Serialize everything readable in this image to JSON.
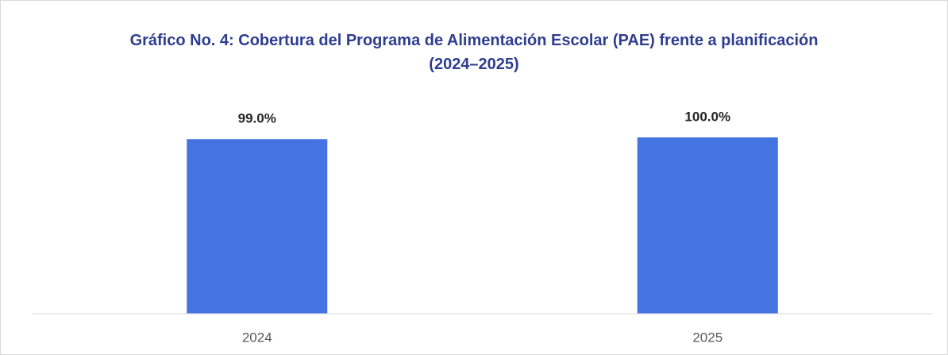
{
  "chart_data": {
    "type": "bar",
    "title": "Gráfico No. 4: Cobertura del Programa de Alimentación Escolar (PAE) frente a planificación (2024–2025)",
    "categories": [
      "2024",
      "2025"
    ],
    "values": [
      99,
      100
    ],
    "value_labels": [
      "99.0%",
      "100.0%"
    ],
    "color": "#4574e2",
    "ylim": [
      0,
      100
    ]
  }
}
